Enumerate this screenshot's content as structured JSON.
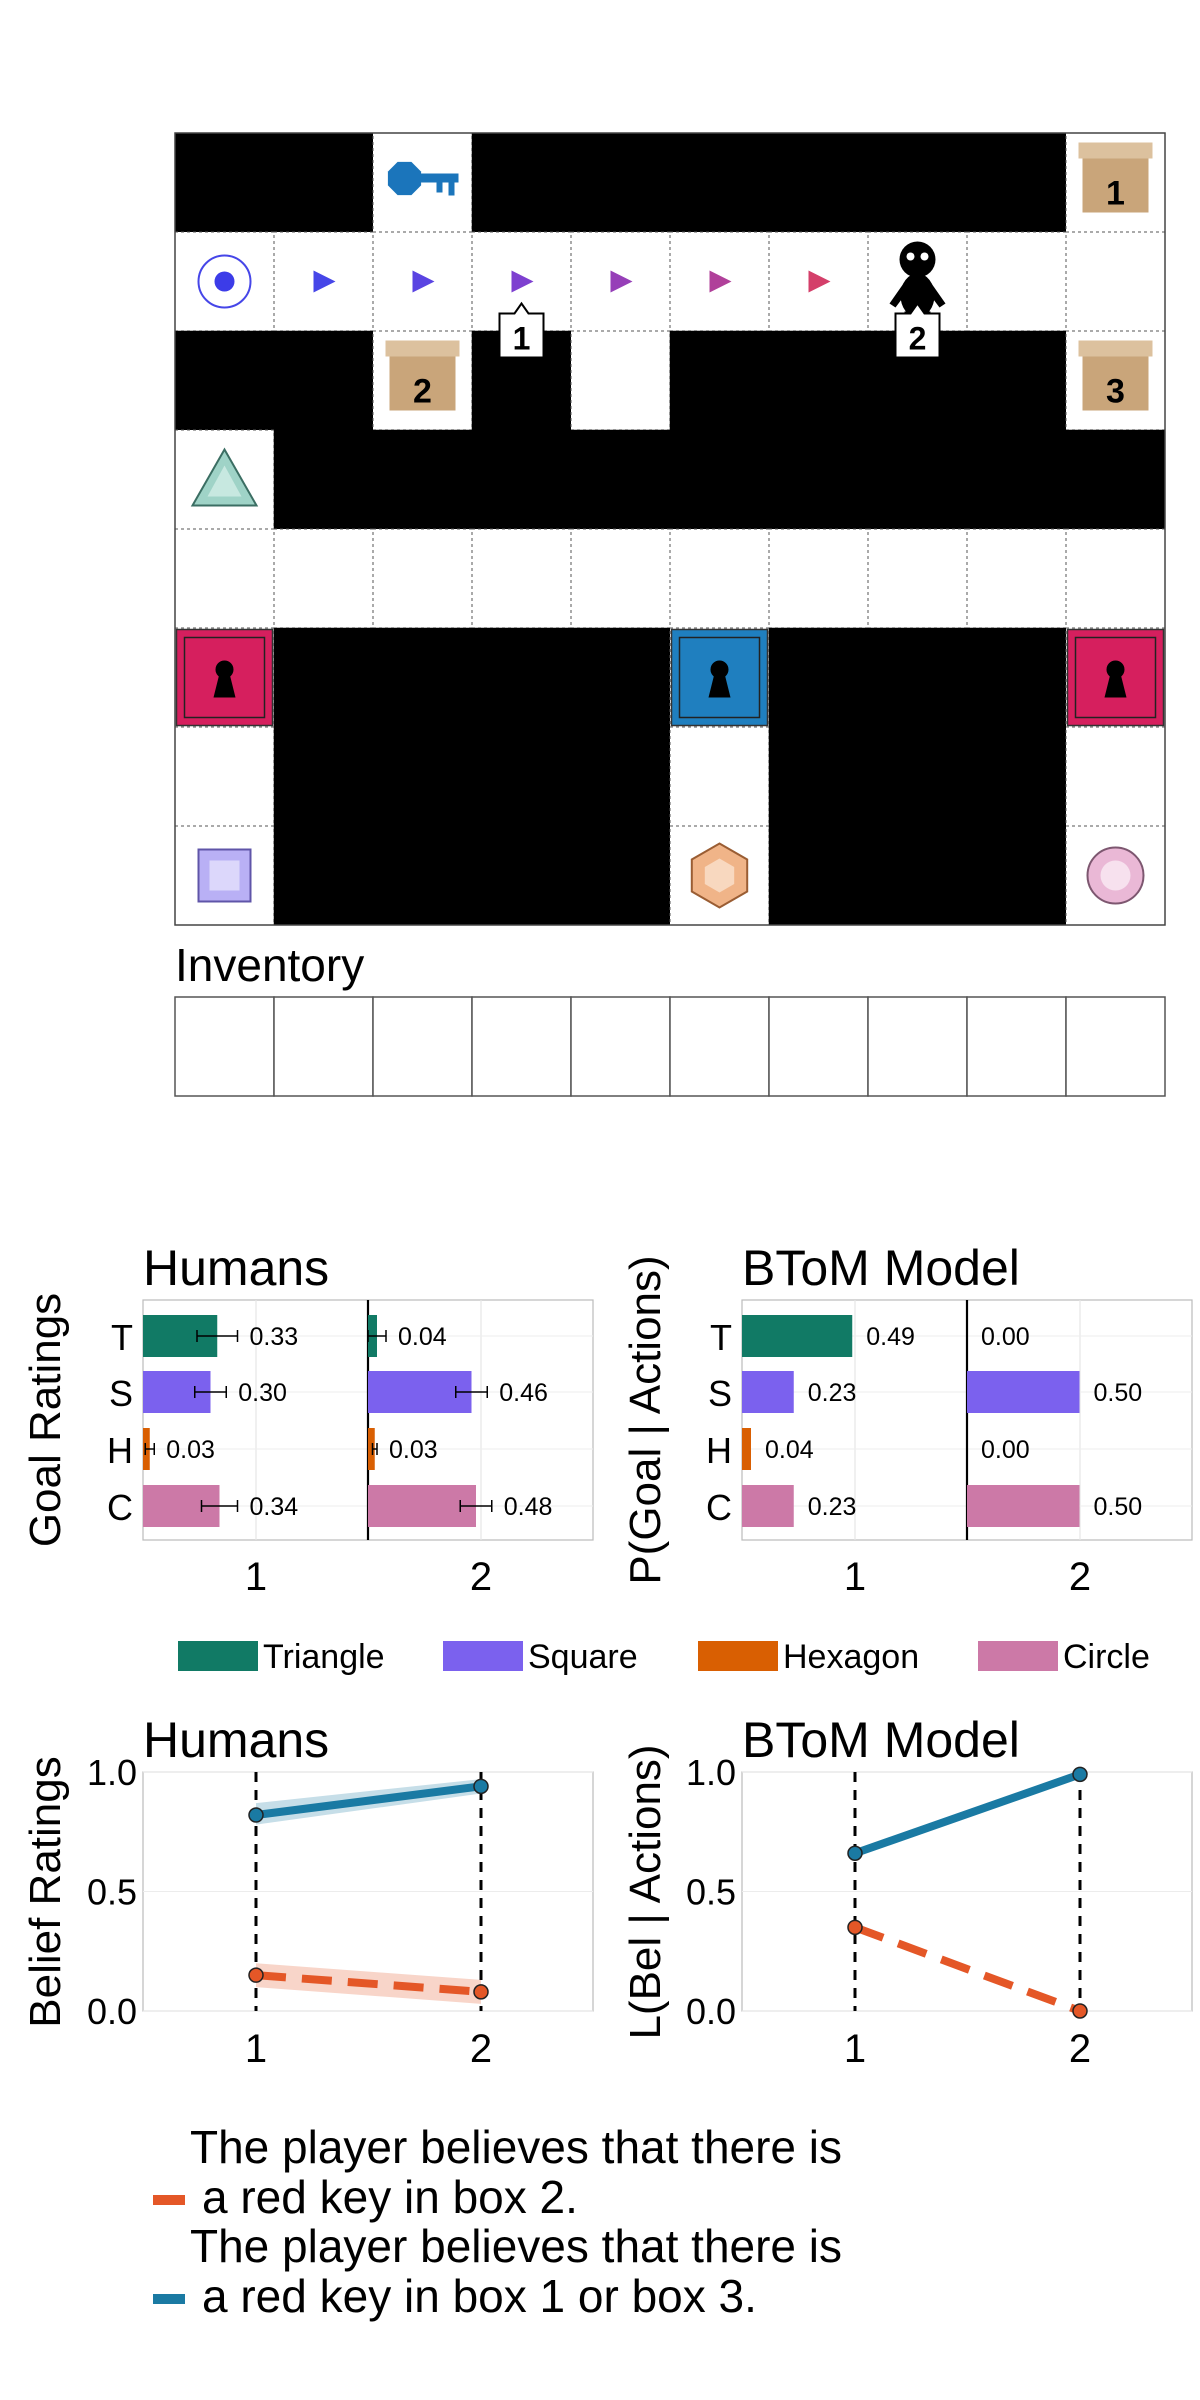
{
  "grid": {
    "rows": 8,
    "cols": 10,
    "layout": [
      "WWXWWWWWWB",
      "..........",
      "WWBW.WWWWB",
      ".WWWWWWWWW",
      "..........",
      "RWWWWBWWWR",
      ".WWWW.WWW.",
      ".WWWW.WWW."
    ],
    "colors": {
      "wall": "#000000",
      "floor": "#ffffff",
      "box": "#c9a57a",
      "box_lid": "#dcc19e",
      "red_door": "#d61f5e",
      "blue_door": "#1f7fbf",
      "blue_key": "#1b75bb"
    },
    "boxes": [
      {
        "row": 0,
        "col": 9,
        "label": "1"
      },
      {
        "row": 2,
        "col": 2,
        "label": "2"
      },
      {
        "row": 2,
        "col": 9,
        "label": "3"
      }
    ],
    "doors": [
      {
        "row": 5,
        "col": 0,
        "color": "red"
      },
      {
        "row": 5,
        "col": 5,
        "color": "blue"
      },
      {
        "row": 5,
        "col": 9,
        "color": "red"
      }
    ],
    "key": {
      "row": 0,
      "col": 2,
      "color": "blue",
      "icon": "key-icon"
    },
    "gems": [
      {
        "row": 3,
        "col": 0,
        "shape": "triangle",
        "color": "#9fd3c7"
      },
      {
        "row": 7,
        "col": 0,
        "shape": "square",
        "color": "#b9b0f5"
      },
      {
        "row": 7,
        "col": 5,
        "shape": "hexagon",
        "color": "#f0b488"
      },
      {
        "row": 7,
        "col": 9,
        "shape": "circle",
        "color": "#eab8d6"
      }
    ],
    "start": {
      "row": 1,
      "col": 0,
      "icon": "start-circle-icon"
    },
    "path_arrows": [
      {
        "row": 1,
        "col": 1,
        "color": "#4646e8"
      },
      {
        "row": 1,
        "col": 2,
        "color": "#5a44e2"
      },
      {
        "row": 1,
        "col": 3,
        "color": "#7e40d0"
      },
      {
        "row": 1,
        "col": 4,
        "color": "#963fb8"
      },
      {
        "row": 1,
        "col": 5,
        "color": "#b0409a"
      },
      {
        "row": 1,
        "col": 6,
        "color": "#d43f6a"
      }
    ],
    "agent": {
      "row": 1,
      "col": 7,
      "icon": "agent-icon"
    },
    "timestep_labels": [
      {
        "row": 1,
        "col": 3,
        "label": "1"
      },
      {
        "row": 1,
        "col": 7,
        "label": "2"
      }
    ]
  },
  "inventory": {
    "title": "Inventory",
    "slots": 10
  },
  "colors": {
    "triangle": "#117a65",
    "square": "#7b61ee",
    "hexagon": "#d95f02",
    "circle": "#cc79a7",
    "blue_line": "#1a7aa3",
    "red_line": "#e45727"
  },
  "legend_goals": [
    "Triangle",
    "Square",
    "Hexagon",
    "Circle"
  ],
  "legend_beliefs": [
    {
      "key": "red",
      "line1": "The player believes that there is",
      "line2": "a red key in box 2."
    },
    {
      "key": "blue",
      "line1": "The player believes that there is",
      "line2": "a red key in box 1 or box 3."
    }
  ],
  "chart_data": [
    {
      "type": "bar",
      "orientation": "horizontal",
      "title": "Humans",
      "ylabel": "Goal Ratings",
      "categories": [
        "T",
        "S",
        "H",
        "C"
      ],
      "panels": [
        "1",
        "2"
      ],
      "series": [
        {
          "panel": "1",
          "values": [
            0.33,
            0.3,
            0.03,
            0.34
          ],
          "errors": [
            0.09,
            0.07,
            0.02,
            0.08
          ]
        },
        {
          "panel": "2",
          "values": [
            0.04,
            0.46,
            0.03,
            0.48
          ],
          "errors": [
            0.04,
            0.07,
            0.01,
            0.07
          ]
        }
      ],
      "xlim": [
        0,
        1
      ]
    },
    {
      "type": "bar",
      "orientation": "horizontal",
      "title": "BToM Model",
      "ylabel": "P(Goal | Actions)",
      "categories": [
        "T",
        "S",
        "H",
        "C"
      ],
      "panels": [
        "1",
        "2"
      ],
      "series": [
        {
          "panel": "1",
          "values": [
            0.49,
            0.23,
            0.04,
            0.23
          ],
          "errors": null
        },
        {
          "panel": "2",
          "values": [
            0.0,
            0.5,
            0.0,
            0.5
          ],
          "errors": null
        }
      ],
      "xlim": [
        0,
        1
      ]
    },
    {
      "type": "line",
      "title": "Humans",
      "ylabel": "Belief Ratings",
      "x": [
        "1",
        "2"
      ],
      "ylim": [
        0.0,
        1.0
      ],
      "yticks": [
        "0.0",
        "0.5",
        "1.0"
      ],
      "series": [
        {
          "key": "blue",
          "values": [
            0.82,
            0.94
          ],
          "band": [
            [
              0.78,
              0.87
            ],
            [
              0.91,
              0.97
            ]
          ],
          "style": "solid"
        },
        {
          "key": "red",
          "values": [
            0.15,
            0.08
          ],
          "band": [
            [
              0.1,
              0.2
            ],
            [
              0.03,
              0.13
            ]
          ],
          "style": "dashed"
        }
      ]
    },
    {
      "type": "line",
      "title": "BToM Model",
      "ylabel": "L(Bel | Actions)",
      "x": [
        "1",
        "2"
      ],
      "ylim": [
        0.0,
        1.0
      ],
      "yticks": [
        "0.0",
        "0.5",
        "1.0"
      ],
      "series": [
        {
          "key": "blue",
          "values": [
            0.66,
            0.99
          ],
          "band": null,
          "style": "solid"
        },
        {
          "key": "red",
          "values": [
            0.35,
            0.0
          ],
          "band": null,
          "style": "dashed"
        }
      ]
    }
  ]
}
